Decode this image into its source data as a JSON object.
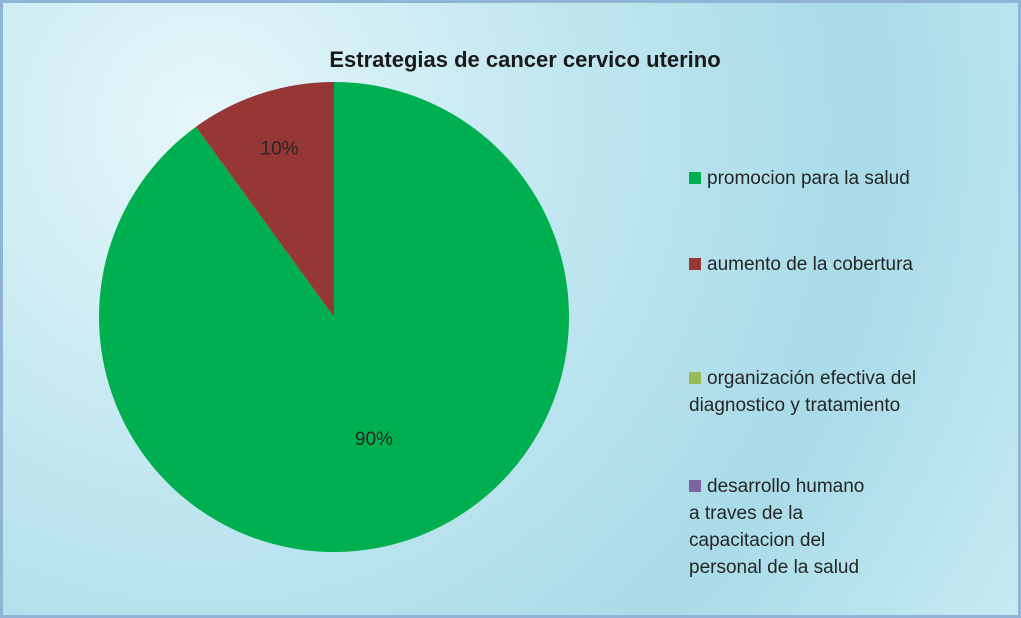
{
  "chart_data": {
    "type": "pie",
    "title": "Estrategias de cancer cervico uterino",
    "categories": [
      "promocion para la salud",
      "aumento de la cobertura",
      "organización efectiva del diagnostico y tratamiento",
      "desarrollo humano a traves de la capacitacion del personal de la salud"
    ],
    "values": [
      90,
      10,
      0,
      0
    ],
    "value_labels": [
      "90%",
      "10%",
      null,
      null
    ],
    "colors": [
      "#00b050",
      "#953735",
      "#9bbb59",
      "#8064a2"
    ],
    "legend": "right"
  }
}
